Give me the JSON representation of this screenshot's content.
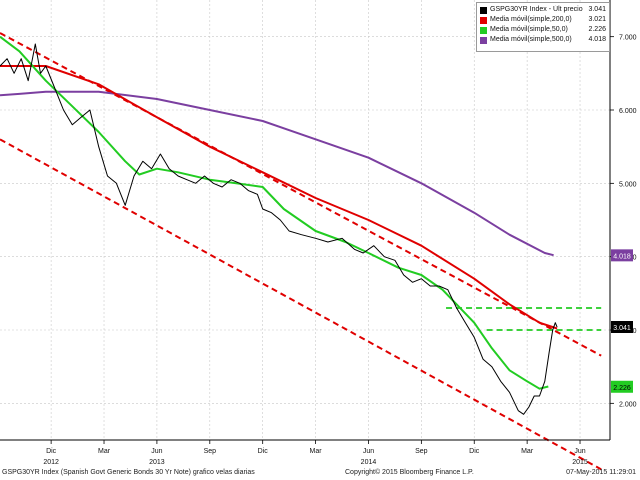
{
  "chart_data": {
    "type": "line",
    "title": "",
    "xlabel": "",
    "ylabel": "",
    "ylim": [
      1.5,
      7.5
    ],
    "y_ticks": [
      "7.000",
      "6.000",
      "5.000",
      "4.000",
      "3.000",
      "2.000"
    ],
    "y_tick_values": [
      7,
      6,
      5,
      4,
      3,
      2
    ],
    "x_ticks": [
      {
        "label": "Dic",
        "t": 0.3
      },
      {
        "label": "Mar",
        "t": 3.3
      },
      {
        "label": "Jun",
        "t": 6.3
      },
      {
        "label": "Sep",
        "t": 9.3
      },
      {
        "label": "Dic",
        "t": 12.3
      },
      {
        "label": "Mar",
        "t": 15.3
      },
      {
        "label": "Jun",
        "t": 18.3
      },
      {
        "label": "Sep",
        "t": 21.3
      },
      {
        "label": "Dic",
        "t": 24.3
      },
      {
        "label": "Mar",
        "t": 27.3
      },
      {
        "label": "Jun",
        "t": 30.3
      }
    ],
    "year_labels": [
      {
        "label": "2012",
        "t": 0.3
      },
      {
        "label": "2013",
        "t": 6.3
      },
      {
        "label": "2014",
        "t": 18.3
      },
      {
        "label": "2015",
        "t": 30.3
      }
    ],
    "x_range": [
      -2.6,
      29.2
    ],
    "legend_position": "top-right",
    "series": [
      {
        "name": "GSPG30YR Index - Últ precio",
        "value_label": "3.041",
        "color": "#000000",
        "points": [
          [
            -2.6,
            6.6
          ],
          [
            -2.2,
            6.7
          ],
          [
            -1.8,
            6.5
          ],
          [
            -1.4,
            6.7
          ],
          [
            -1.0,
            6.4
          ],
          [
            -0.6,
            6.9
          ],
          [
            -0.3,
            6.5
          ],
          [
            0.0,
            6.6
          ],
          [
            0.5,
            6.3
          ],
          [
            1.0,
            6.0
          ],
          [
            1.5,
            5.8
          ],
          [
            2.0,
            5.9
          ],
          [
            2.5,
            6.0
          ],
          [
            3.0,
            5.5
          ],
          [
            3.5,
            5.1
          ],
          [
            4.0,
            5.0
          ],
          [
            4.5,
            4.7
          ],
          [
            5.0,
            5.1
          ],
          [
            5.5,
            5.3
          ],
          [
            6.0,
            5.2
          ],
          [
            6.5,
            5.4
          ],
          [
            7.0,
            5.2
          ],
          [
            7.5,
            5.1
          ],
          [
            8.0,
            5.05
          ],
          [
            8.5,
            5.0
          ],
          [
            9.0,
            5.1
          ],
          [
            9.5,
            5.0
          ],
          [
            10.0,
            4.95
          ],
          [
            10.5,
            5.05
          ],
          [
            11.0,
            5.0
          ],
          [
            11.5,
            4.9
          ],
          [
            12.0,
            4.85
          ],
          [
            12.3,
            4.65
          ],
          [
            12.8,
            4.6
          ],
          [
            13.3,
            4.5
          ],
          [
            13.8,
            4.35
          ],
          [
            14.5,
            4.3
          ],
          [
            15.3,
            4.25
          ],
          [
            16.0,
            4.2
          ],
          [
            16.8,
            4.25
          ],
          [
            17.5,
            4.1
          ],
          [
            18.0,
            4.05
          ],
          [
            18.6,
            4.15
          ],
          [
            19.2,
            4.0
          ],
          [
            19.8,
            3.95
          ],
          [
            20.3,
            3.75
          ],
          [
            20.8,
            3.65
          ],
          [
            21.3,
            3.7
          ],
          [
            21.8,
            3.6
          ],
          [
            22.3,
            3.6
          ],
          [
            22.8,
            3.55
          ],
          [
            23.3,
            3.3
          ],
          [
            23.8,
            3.1
          ],
          [
            24.3,
            2.9
          ],
          [
            24.8,
            2.6
          ],
          [
            25.3,
            2.5
          ],
          [
            25.8,
            2.3
          ],
          [
            26.3,
            2.15
          ],
          [
            26.8,
            1.9
          ],
          [
            27.1,
            1.85
          ],
          [
            27.4,
            1.95
          ],
          [
            27.7,
            2.1
          ],
          [
            28.0,
            2.1
          ],
          [
            28.3,
            2.3
          ],
          [
            28.55,
            2.7
          ],
          [
            28.75,
            3.0
          ],
          [
            28.9,
            3.1
          ],
          [
            29.0,
            3.04
          ]
        ]
      },
      {
        "name": "Media móvil(simple,200,0)",
        "value_label": "3.021",
        "color": "#e00000",
        "points": [
          [
            -2.6,
            6.6
          ],
          [
            0.0,
            6.6
          ],
          [
            3.0,
            6.35
          ],
          [
            6.3,
            5.9
          ],
          [
            9.3,
            5.5
          ],
          [
            12.3,
            5.15
          ],
          [
            15.3,
            4.8
          ],
          [
            18.3,
            4.5
          ],
          [
            21.3,
            4.15
          ],
          [
            24.3,
            3.7
          ],
          [
            26.3,
            3.35
          ],
          [
            28.0,
            3.1
          ],
          [
            29.0,
            3.02
          ]
        ]
      },
      {
        "name": "Media móvil(simple,50,0)",
        "value_label": "2.226",
        "color": "#22cc22",
        "points": [
          [
            -2.6,
            7.0
          ],
          [
            -1.5,
            6.8
          ],
          [
            0.0,
            6.4
          ],
          [
            1.5,
            6.05
          ],
          [
            3.0,
            5.7
          ],
          [
            4.5,
            5.3
          ],
          [
            5.3,
            5.12
          ],
          [
            6.3,
            5.2
          ],
          [
            7.5,
            5.15
          ],
          [
            9.3,
            5.05
          ],
          [
            10.8,
            5.0
          ],
          [
            12.3,
            4.95
          ],
          [
            13.5,
            4.65
          ],
          [
            15.3,
            4.35
          ],
          [
            17.0,
            4.2
          ],
          [
            18.3,
            4.05
          ],
          [
            20.0,
            3.85
          ],
          [
            21.3,
            3.75
          ],
          [
            22.5,
            3.55
          ],
          [
            24.3,
            3.1
          ],
          [
            25.3,
            2.75
          ],
          [
            26.3,
            2.45
          ],
          [
            27.3,
            2.3
          ],
          [
            28.0,
            2.2
          ],
          [
            28.5,
            2.23
          ]
        ]
      },
      {
        "name": "Media móvil(simple,500,0)",
        "value_label": "4.018",
        "color": "#7b3fa0",
        "points": [
          [
            -2.6,
            6.2
          ],
          [
            -1.5,
            6.22
          ],
          [
            0.0,
            6.25
          ],
          [
            3.0,
            6.25
          ],
          [
            6.3,
            6.15
          ],
          [
            9.3,
            6.0
          ],
          [
            12.3,
            5.85
          ],
          [
            15.3,
            5.6
          ],
          [
            18.3,
            5.35
          ],
          [
            21.3,
            5.0
          ],
          [
            24.3,
            4.6
          ],
          [
            26.3,
            4.3
          ],
          [
            28.3,
            4.05
          ],
          [
            28.8,
            4.02
          ]
        ]
      }
    ],
    "value_tags": [
      {
        "text": "4.018",
        "y": 4.018,
        "bg": "#7b3fa0",
        "fg": "#ffffff"
      },
      {
        "text": "3.041",
        "y": 3.041,
        "bg": "#000000",
        "fg": "#ffffff"
      },
      {
        "text": "2.226",
        "y": 2.226,
        "bg": "#22cc22",
        "fg": "#000000"
      }
    ],
    "channel_lines": [
      {
        "color": "#e00000",
        "points": [
          [
            -2.6,
            7.05
          ],
          [
            31.5,
            2.65
          ]
        ]
      },
      {
        "color": "#e00000",
        "points": [
          [
            -2.6,
            5.6
          ],
          [
            31.5,
            1.1
          ]
        ]
      }
    ],
    "support_lines": [
      {
        "color": "#22cc22",
        "y": 3.3,
        "t0": 22.7,
        "t1": 31.5
      },
      {
        "color": "#22cc22",
        "y": 3.0,
        "t0": 25.0,
        "t1": 31.5
      }
    ]
  },
  "legend": {
    "items": [
      {
        "label": "GSPG30YR Index - Últ precio",
        "value": "3.041",
        "color": "#000000"
      },
      {
        "label": "Media móvil(simple,200,0)",
        "value": "3.021",
        "color": "#e00000"
      },
      {
        "label": "Media móvil(simple,50,0)",
        "value": "2.226",
        "color": "#22cc22"
      },
      {
        "label": "Media móvil(simple,500,0)",
        "value": "4.018",
        "color": "#7b3fa0"
      }
    ]
  },
  "footer": {
    "description": "GSPG30YR Index (Spanish Govt Generic Bonds 30 Yr Note) grafico velas diarias",
    "copyright": "Copyright© 2015 Bloomberg Finance L.P.",
    "timestamp": "07-May-2015 11:29:01"
  }
}
